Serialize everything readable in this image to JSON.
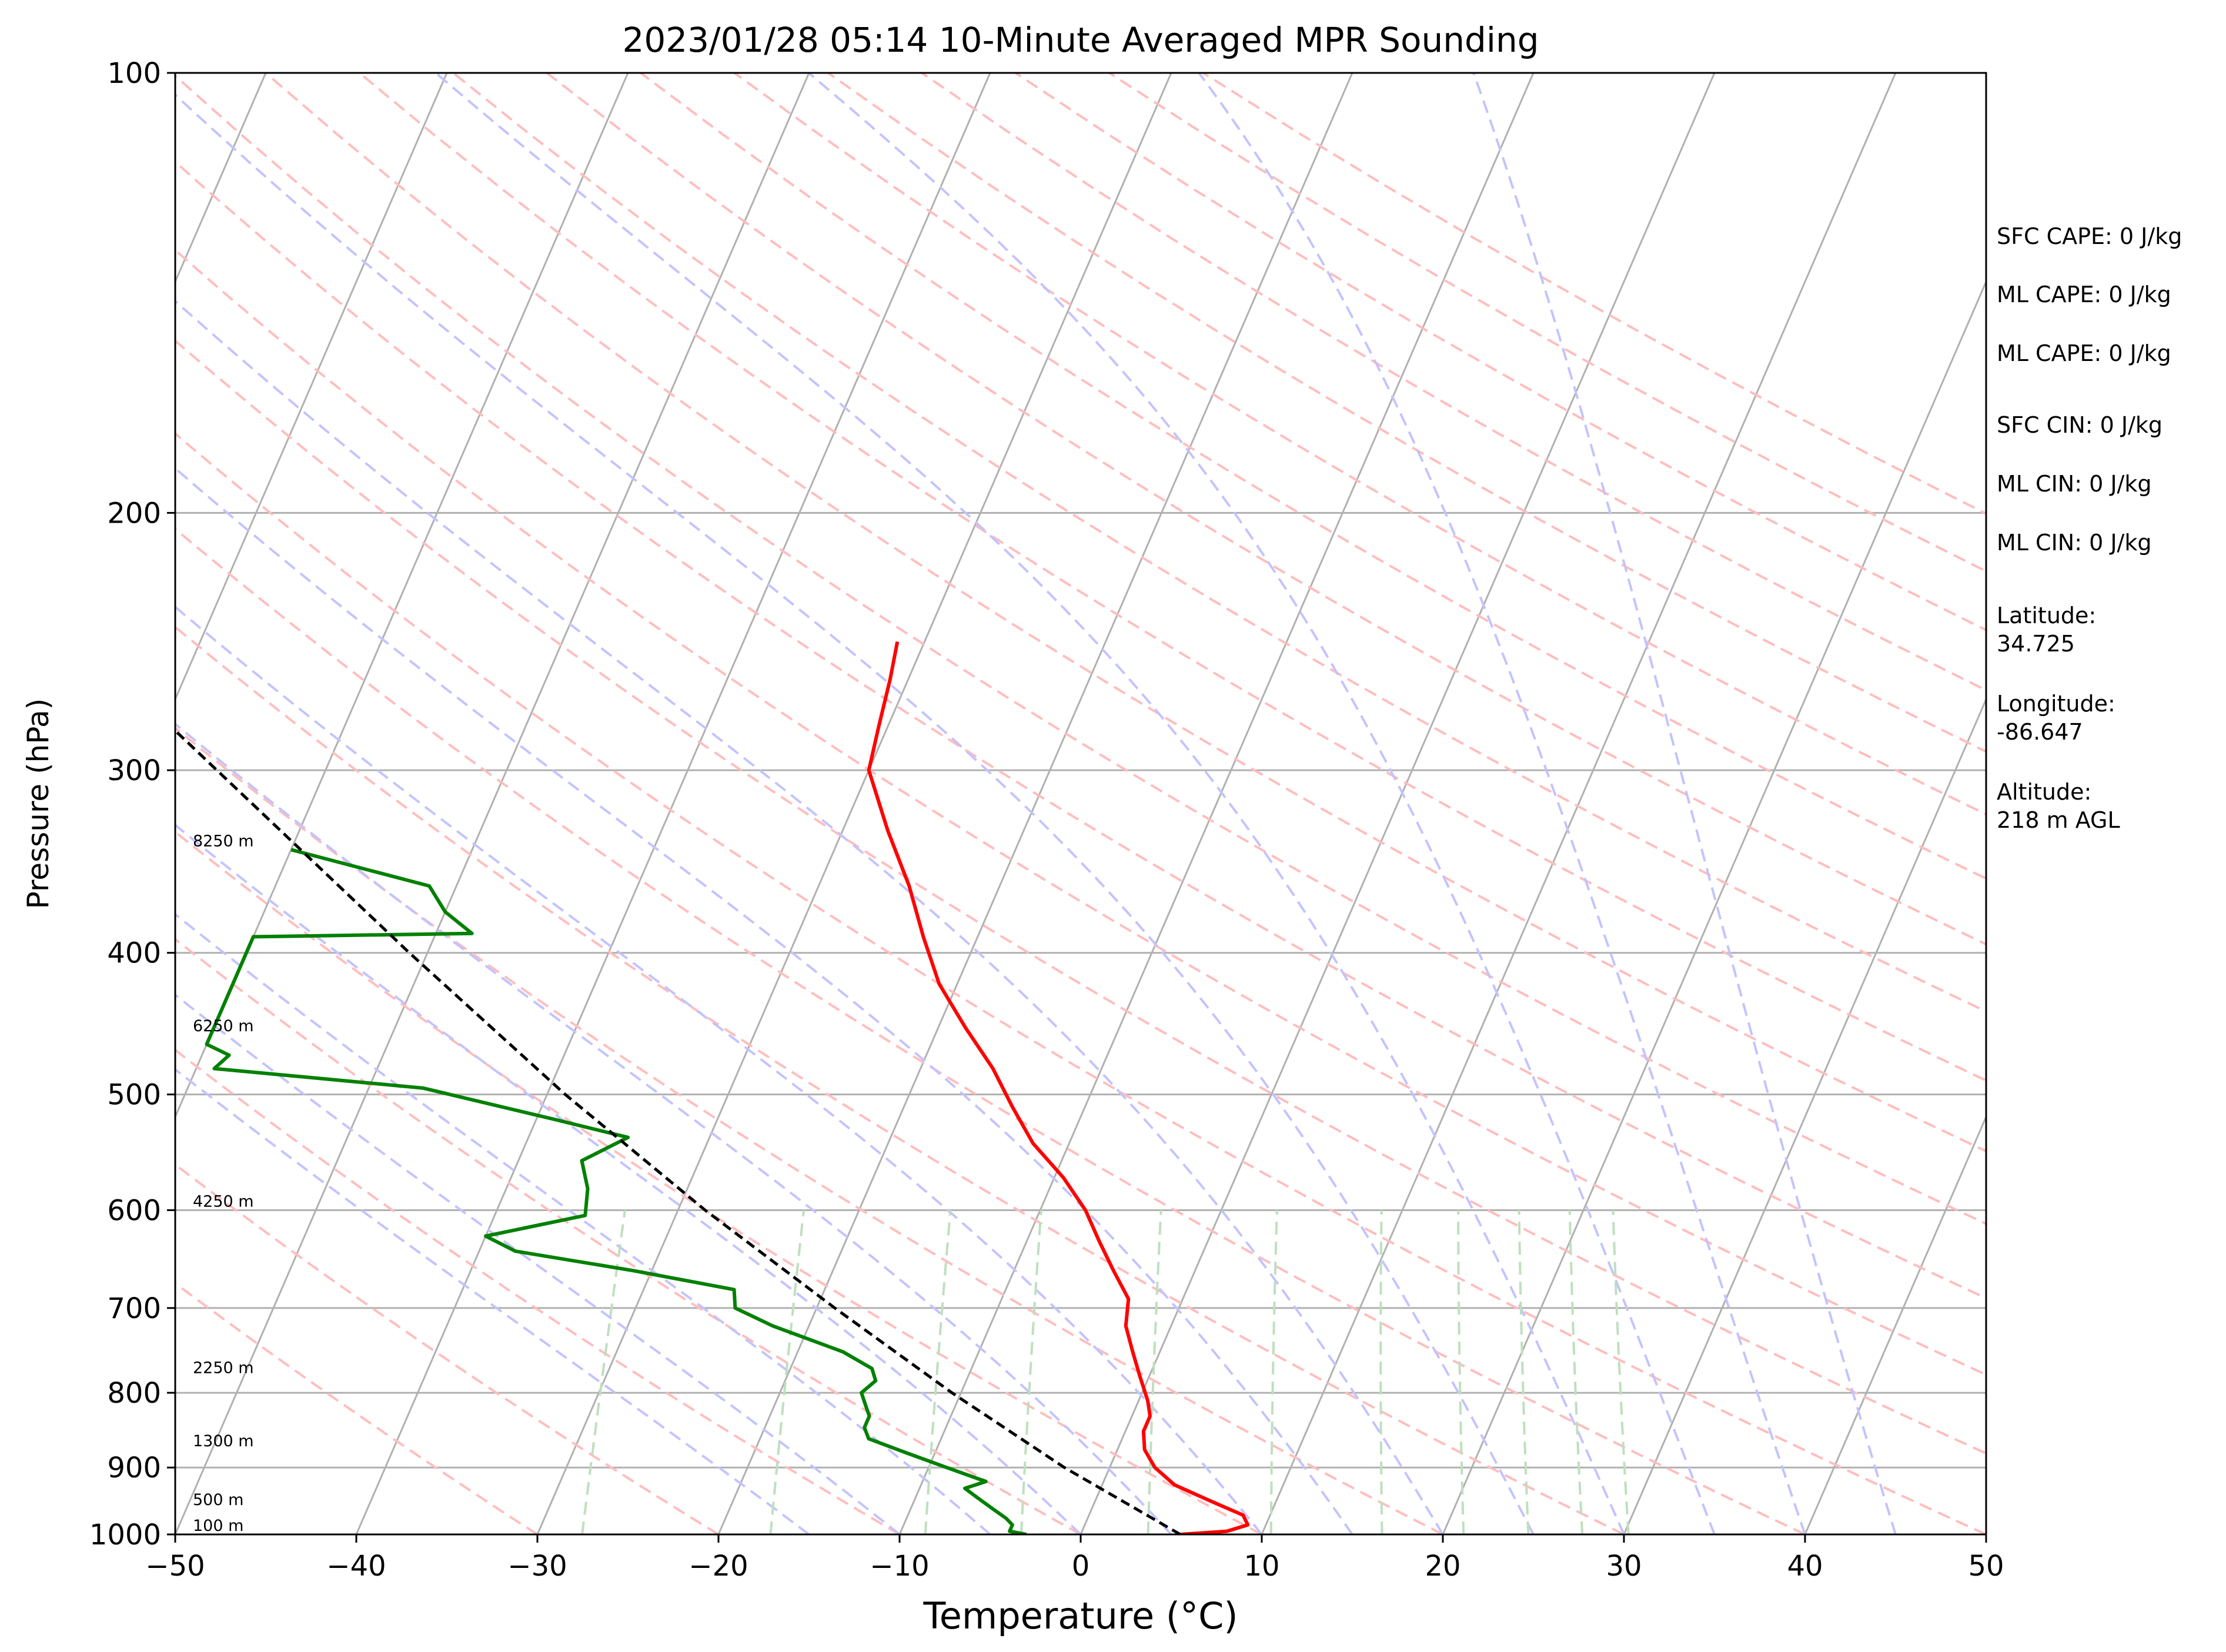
{
  "chart_data": {
    "type": "line",
    "title": "2023/01/28 05:14 10-Minute Averaged MPR Sounding",
    "xlabel": "Temperature (°C)",
    "ylabel": "Pressure (hPa)",
    "xlim": [
      -50,
      50
    ],
    "ylim": [
      1000,
      100
    ],
    "y_scale": "log",
    "skew_t": true,
    "grid": true,
    "x_ticks": [
      -50,
      -40,
      -30,
      -20,
      -10,
      0,
      10,
      20,
      30,
      40,
      50
    ],
    "x_tick_labels": [
      "−50",
      "−40",
      "−30",
      "−20",
      "−10",
      "0",
      "10",
      "20",
      "30",
      "40",
      "50"
    ],
    "y_ticks": [
      1000,
      900,
      800,
      700,
      600,
      500,
      400,
      300,
      200,
      100
    ],
    "y_tick_labels": [
      "1000",
      "900",
      "800",
      "700",
      "600",
      "500",
      "400",
      "300",
      "200",
      "100"
    ],
    "series": [
      {
        "role": "temperature",
        "color": "#ff0000",
        "points": [
          [
            1000,
            5.5
          ],
          [
            995,
            8.0
          ],
          [
            985,
            9.0
          ],
          [
            970,
            8.5
          ],
          [
            950,
            6.5
          ],
          [
            925,
            4.0
          ],
          [
            900,
            2.5
          ],
          [
            875,
            1.5
          ],
          [
            850,
            1.0
          ],
          [
            830,
            1.0
          ],
          [
            810,
            0.5
          ],
          [
            780,
            -0.5
          ],
          [
            750,
            -1.5
          ],
          [
            720,
            -2.5
          ],
          [
            690,
            -3.0
          ],
          [
            660,
            -4.5
          ],
          [
            630,
            -6.0
          ],
          [
            600,
            -7.5
          ],
          [
            570,
            -9.5
          ],
          [
            540,
            -12.0
          ],
          [
            510,
            -14.0
          ],
          [
            480,
            -16.0
          ],
          [
            450,
            -18.5
          ],
          [
            420,
            -21.0
          ],
          [
            390,
            -23.0
          ],
          [
            360,
            -25.0
          ],
          [
            330,
            -27.5
          ],
          [
            300,
            -30.0
          ],
          [
            280,
            -30.5
          ],
          [
            260,
            -31.0
          ],
          [
            245,
            -31.5
          ]
        ]
      },
      {
        "role": "dewpoint",
        "color": "#008000",
        "points": [
          [
            1000,
            -3.0
          ],
          [
            995,
            -4.0
          ],
          [
            985,
            -4.0
          ],
          [
            975,
            -4.5
          ],
          [
            960,
            -5.5
          ],
          [
            945,
            -6.5
          ],
          [
            930,
            -7.5
          ],
          [
            920,
            -6.5
          ],
          [
            900,
            -9.0
          ],
          [
            880,
            -11.5
          ],
          [
            860,
            -14.0
          ],
          [
            845,
            -14.5
          ],
          [
            830,
            -14.5
          ],
          [
            815,
            -15.0
          ],
          [
            800,
            -15.5
          ],
          [
            785,
            -15.0
          ],
          [
            770,
            -15.5
          ],
          [
            750,
            -17.5
          ],
          [
            720,
            -22.0
          ],
          [
            700,
            -24.5
          ],
          [
            680,
            -25.0
          ],
          [
            660,
            -31.0
          ],
          [
            640,
            -38.0
          ],
          [
            625,
            -40.0
          ],
          [
            605,
            -35.0
          ],
          [
            580,
            -35.5
          ],
          [
            555,
            -36.5
          ],
          [
            535,
            -34.5
          ],
          [
            520,
            -39.0
          ],
          [
            495,
            -47.0
          ],
          [
            480,
            -59.0
          ],
          [
            470,
            -58.5
          ],
          [
            462,
            -60.0
          ],
          [
            390,
            -60.0
          ],
          [
            388,
            -48.0
          ],
          [
            375,
            -50.0
          ],
          [
            360,
            -51.5
          ],
          [
            340,
            -60.0
          ]
        ]
      },
      {
        "role": "parcel",
        "color": "#000000",
        "style": "dashed",
        "points": [
          [
            1000,
            5.5
          ],
          [
            900,
            -2.5
          ],
          [
            800,
            -10.5
          ],
          [
            700,
            -19.0
          ],
          [
            600,
            -28.5
          ],
          [
            500,
            -39.0
          ],
          [
            400,
            -51.0
          ],
          [
            300,
            -66.0
          ],
          [
            250,
            -75.5
          ]
        ]
      }
    ],
    "reference_lines": [
      {
        "name": "isotherms",
        "color": "#b0b0b0",
        "style": "solid"
      },
      {
        "name": "dry adiabats",
        "color": "#ffbdbd",
        "style": "dashed"
      },
      {
        "name": "moist adiabats",
        "color": "#c3c3ff",
        "style": "dashed"
      },
      {
        "name": "mixing ratio lines",
        "color": "#bfdfbf",
        "style": "dashed"
      }
    ],
    "height_labels": [
      {
        "pressure": 1000,
        "text": "100 m"
      },
      {
        "pressure": 960,
        "text": "500 m"
      },
      {
        "pressure": 875,
        "text": "1300 m"
      },
      {
        "pressure": 780,
        "text": "2250 m"
      },
      {
        "pressure": 600,
        "text": "4250 m"
      },
      {
        "pressure": 455,
        "text": "6250 m"
      },
      {
        "pressure": 340,
        "text": "8250 m"
      }
    ],
    "annotations": [
      "SFC CAPE: 0 J/kg",
      "ML CAPE: 0 J/kg",
      "ML CAPE: 0 J/kg",
      "SFC CIN: 0 J/kg",
      "ML CIN: 0 J/kg",
      "ML CIN: 0 J/kg",
      "Latitude:\n34.725",
      "Longitude:\n-86.647",
      "Altitude:\n218 m AGL"
    ]
  }
}
